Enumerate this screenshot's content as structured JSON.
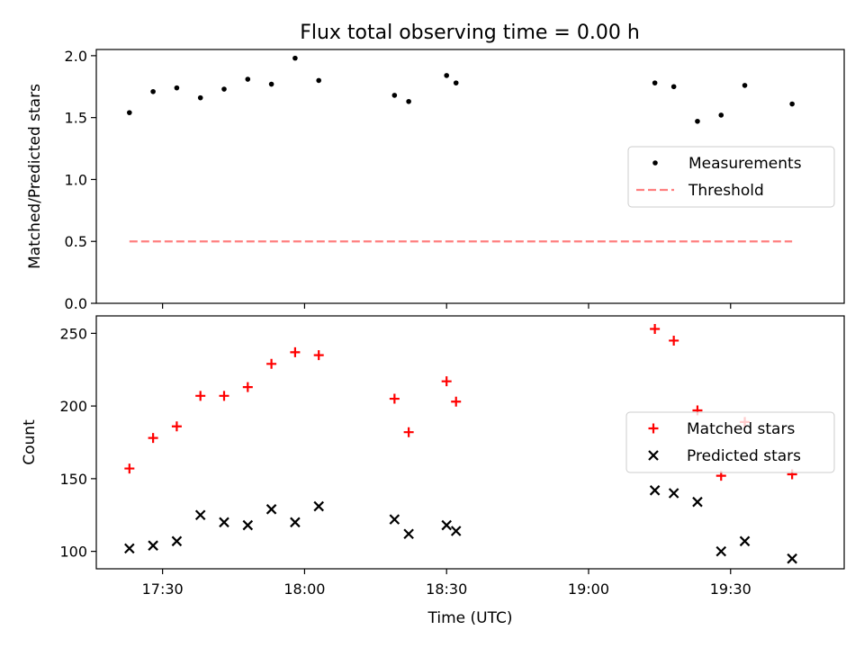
{
  "chart_data": [
    {
      "type": "scatter",
      "title": "Flux total observing time = 0.00 h",
      "xlabel": "",
      "ylabel": "Matched/Predicted stars",
      "x_axis": "time",
      "xlim": [
        "17:16",
        "19:54"
      ],
      "ylim": [
        0,
        2.05
      ],
      "yticks": [
        0.0,
        0.5,
        1.0,
        1.5,
        2.0
      ],
      "grid": false,
      "legend_position": "center-right",
      "series": [
        {
          "name": "Measurements",
          "kind": "scatter",
          "marker": "dot",
          "color": "#000000",
          "points": [
            [
              "17:23",
              1.54
            ],
            [
              "17:28",
              1.71
            ],
            [
              "17:33",
              1.74
            ],
            [
              "17:38",
              1.66
            ],
            [
              "17:43",
              1.73
            ],
            [
              "17:48",
              1.81
            ],
            [
              "17:53",
              1.77
            ],
            [
              "17:58",
              1.98
            ],
            [
              "18:03",
              1.8
            ],
            [
              "18:19",
              1.68
            ],
            [
              "18:22",
              1.63
            ],
            [
              "18:30",
              1.84
            ],
            [
              "18:32",
              1.78
            ],
            [
              "19:14",
              1.78
            ],
            [
              "19:18",
              1.75
            ],
            [
              "19:23",
              1.47
            ],
            [
              "19:28",
              1.52
            ],
            [
              "19:33",
              1.76
            ],
            [
              "19:43",
              1.61
            ]
          ]
        },
        {
          "name": "Threshold",
          "kind": "line",
          "dashed": true,
          "color": "#ff7f7f",
          "points": [
            [
              "17:23",
              0.5
            ],
            [
              "19:43",
              0.5
            ]
          ]
        }
      ]
    },
    {
      "type": "scatter",
      "title": "",
      "xlabel": "Time (UTC)",
      "ylabel": "Count",
      "x_axis": "time",
      "xlim": [
        "17:16",
        "19:54"
      ],
      "ylim": [
        88,
        262
      ],
      "yticks": [
        100,
        150,
        200,
        250
      ],
      "xticks": [
        "17:30",
        "18:00",
        "18:30",
        "19:00",
        "19:30"
      ],
      "grid": false,
      "legend_position": "center-right",
      "series": [
        {
          "name": "Matched stars",
          "marker": "plus",
          "color": "#ff0000",
          "points": [
            [
              "17:23",
              157
            ],
            [
              "17:28",
              178
            ],
            [
              "17:33",
              186
            ],
            [
              "17:38",
              207
            ],
            [
              "17:43",
              207
            ],
            [
              "17:48",
              213
            ],
            [
              "17:53",
              229
            ],
            [
              "17:58",
              237
            ],
            [
              "18:03",
              235
            ],
            [
              "18:19",
              205
            ],
            [
              "18:22",
              182
            ],
            [
              "18:30",
              217
            ],
            [
              "18:32",
              203
            ],
            [
              "19:14",
              253
            ],
            [
              "19:18",
              245
            ],
            [
              "19:23",
              197
            ],
            [
              "19:28",
              152
            ],
            [
              "19:33",
              189
            ],
            [
              "19:43",
              153
            ]
          ]
        },
        {
          "name": "Predicted stars",
          "marker": "x",
          "color": "#000000",
          "points": [
            [
              "17:23",
              102
            ],
            [
              "17:28",
              104
            ],
            [
              "17:33",
              107
            ],
            [
              "17:38",
              125
            ],
            [
              "17:43",
              120
            ],
            [
              "17:48",
              118
            ],
            [
              "17:53",
              129
            ],
            [
              "17:58",
              120
            ],
            [
              "18:03",
              131
            ],
            [
              "18:19",
              122
            ],
            [
              "18:22",
              112
            ],
            [
              "18:30",
              118
            ],
            [
              "18:32",
              114
            ],
            [
              "19:14",
              142
            ],
            [
              "19:18",
              140
            ],
            [
              "19:23",
              134
            ],
            [
              "19:28",
              100
            ],
            [
              "19:33",
              107
            ],
            [
              "19:43",
              95
            ]
          ]
        }
      ]
    }
  ]
}
